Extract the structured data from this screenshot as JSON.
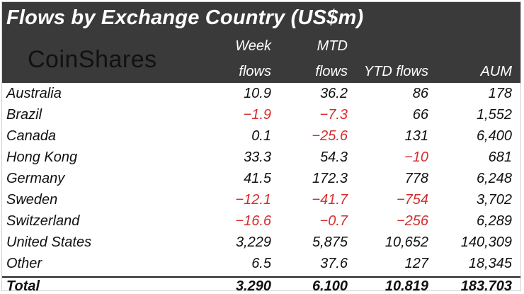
{
  "title": "Flows by Exchange Country (US$m)",
  "logo_text": "CoinShares",
  "columns": [
    {
      "line1": "Week",
      "line2": "flows"
    },
    {
      "line1": "MTD",
      "line2": "flows"
    },
    {
      "line1": "",
      "line2": "YTD flows"
    },
    {
      "line1": "",
      "line2": "AUM"
    }
  ],
  "rows": [
    {
      "name": "Australia",
      "week": "10.9",
      "mtd": "36.2",
      "ytd": "86",
      "aum": "178"
    },
    {
      "name": "Brazil",
      "week": "-1.9",
      "mtd": "-7.3",
      "ytd": "66",
      "aum": "1,552"
    },
    {
      "name": "Canada",
      "week": "0.1",
      "mtd": "-25.6",
      "ytd": "131",
      "aum": "6,400"
    },
    {
      "name": "Hong Kong",
      "week": "33.3",
      "mtd": "54.3",
      "ytd": "-10",
      "aum": "681"
    },
    {
      "name": "Germany",
      "week": "41.5",
      "mtd": "172.3",
      "ytd": "778",
      "aum": "6,248"
    },
    {
      "name": "Sweden",
      "week": "-12.1",
      "mtd": "-41.7",
      "ytd": "-754",
      "aum": "3,702"
    },
    {
      "name": "Switzerland",
      "week": "-16.6",
      "mtd": "-0.7",
      "ytd": "-256",
      "aum": "6,289"
    },
    {
      "name": "United States",
      "week": "3,229",
      "mtd": "5,875",
      "ytd": "10,652",
      "aum": "140,309"
    },
    {
      "name": "Other",
      "week": "6.5",
      "mtd": "37.6",
      "ytd": "127",
      "aum": "18,345"
    }
  ],
  "total": {
    "name": "Total",
    "week": "3,290",
    "mtd": "6,100",
    "ytd": "10,819",
    "aum": "183,703"
  },
  "colors": {
    "header_bg": "#3a3a3a",
    "negative": "#d62d2d",
    "text": "#111111"
  }
}
